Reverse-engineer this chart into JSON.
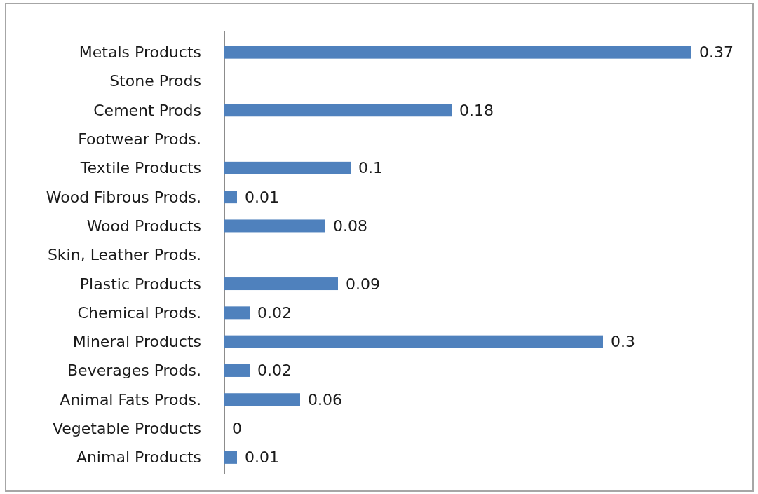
{
  "chart_data": {
    "type": "bar",
    "orientation": "horizontal",
    "categories": [
      "Metals Products",
      "Stone Prods",
      "Cement Prods",
      "Footwear Prods.",
      "Textile Products",
      "Wood Fibrous Prods.",
      "Wood Products",
      "Skin, Leather Prods.",
      "Plastic Products",
      "Chemical Prods.",
      "Mineral Products",
      "Beverages Prods.",
      "Animal Fats Prods.",
      "Vegetable Products",
      "Animal Products"
    ],
    "values": [
      0.37,
      null,
      0.18,
      null,
      0.1,
      0.01,
      0.08,
      null,
      0.09,
      0.02,
      0.3,
      0.02,
      0.06,
      0,
      0.01
    ],
    "color": "#4f81bd",
    "data_labels": true
  }
}
